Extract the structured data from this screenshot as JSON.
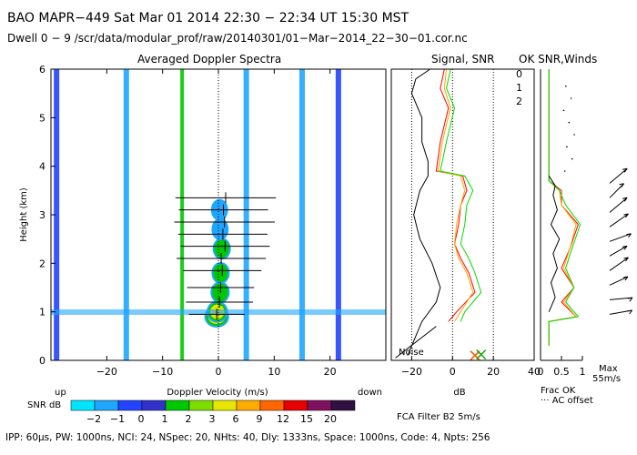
{
  "header": {
    "line1": "BAO   MAPR−449   Sat Mar 01 2014 22:30  − 22:34 UT 15:30 MST",
    "line2": "Dwell   0  −  9    /scr/data/modular_prof/raw/20140301/01−Mar−2014_22−30−01.cor.nc"
  },
  "panels": {
    "spectra_title": "Averaged Doppler Spectra",
    "signal_title": "Signal, SNR",
    "ok_title": "OK SNR,Winds",
    "ylabel": "Height (km)",
    "xlabel_spectra": "Doppler Velocity (m/s)",
    "xlabel_signal": "dB",
    "up_label": "up",
    "down_label": "down",
    "noise_label": "Noise",
    "frac_ok_label": "Frac OK",
    "ac_offset_label": "··· AC offset",
    "max_label": "Max",
    "max_value": "55m/s",
    "filter_label": "FCA Filter B2   5m/s",
    "snr_label": "SNR dB",
    "dwell_legend": [
      "0",
      "1",
      "2"
    ],
    "dwell_colors": [
      "#ff0000",
      "#ffa500",
      "#00dd00"
    ]
  },
  "colorbar": {
    "labels": [
      "−2",
      "−1",
      "0",
      "1",
      "2",
      "3",
      "6",
      "9",
      "12",
      "15",
      "20"
    ],
    "colors": [
      "#00e5ff",
      "#1fa6ff",
      "#2244ff",
      "#3333cc",
      "#00c800",
      "#7fdc00",
      "#e6e600",
      "#ffaa00",
      "#ff6600",
      "#e60000",
      "#801060",
      "#301040"
    ]
  },
  "footer": "IPP: 60μs,   PW: 1000ns,   NCI:  24,   NSpec: 20,  NHts: 40,   Dly: 1333ns,   Space: 1000ns,   Code: 4,   Npts: 256",
  "chart_data": [
    {
      "type": "heatmap",
      "title": "Averaged Doppler Spectra",
      "xlabel": "Doppler Velocity (m/s)",
      "ylabel": "Height (km)",
      "xlim": [
        -30,
        30
      ],
      "ylim": [
        0,
        6
      ],
      "xticks": [
        -20,
        -10,
        0,
        10,
        20
      ],
      "yticks": [
        0,
        1,
        2,
        3,
        4,
        5,
        6
      ],
      "x_ticklabels": [
        "−20",
        "−10",
        "0",
        "10",
        "20"
      ],
      "y_ticklabels": [
        "0",
        "1",
        "2",
        "3",
        "4",
        "5",
        "6"
      ],
      "vertical_bands": [
        {
          "x": -29,
          "snr": -1
        },
        {
          "x": -16.5,
          "snr": -2
        },
        {
          "x": -6.5,
          "snr": 1
        },
        {
          "x": 5,
          "snr": -2
        },
        {
          "x": 15,
          "snr": -2
        },
        {
          "x": 21.5,
          "snr": -1
        }
      ],
      "core_echo": [
        {
          "h": 0.9,
          "v": -0.3,
          "snr": 6
        },
        {
          "h": 1.0,
          "v": -0.2,
          "snr": 3
        },
        {
          "h": 1.4,
          "v": 0.3,
          "snr": 1
        },
        {
          "h": 1.8,
          "v": 0.4,
          "snr": 0
        },
        {
          "h": 2.3,
          "v": 0.6,
          "snr": 0
        },
        {
          "h": 2.7,
          "v": 0.3,
          "snr": -1
        },
        {
          "h": 3.1,
          "v": 0.2,
          "snr": -1
        }
      ],
      "moment_markers": [
        {
          "h": 0.95,
          "v": -0.3,
          "w": 5
        },
        {
          "h": 1.2,
          "v": 0.2,
          "w": 6
        },
        {
          "h": 1.5,
          "v": 0.4,
          "w": 6
        },
        {
          "h": 1.85,
          "v": 0.7,
          "w": 7
        },
        {
          "h": 2.1,
          "v": 0.5,
          "w": 8
        },
        {
          "h": 2.35,
          "v": 1.2,
          "w": 8
        },
        {
          "h": 2.6,
          "v": 0.8,
          "w": 8
        },
        {
          "h": 2.85,
          "v": 1.1,
          "w": 9
        },
        {
          "h": 3.1,
          "v": 0.9,
          "w": 8
        },
        {
          "h": 3.35,
          "v": 1.3,
          "w": 9
        }
      ]
    },
    {
      "type": "line",
      "title": "Signal, SNR",
      "xlabel": "dB",
      "xlim": [
        -30,
        40
      ],
      "ylim": [
        0,
        6
      ],
      "xticks": [
        -20,
        0,
        20,
        40
      ],
      "x_ticklabels": [
        "−20",
        "0",
        "20",
        "40"
      ],
      "series": [
        {
          "color": "#000000",
          "x": [
            -22,
            -15,
            -8,
            -6,
            -10,
            -16,
            -19,
            -16,
            -12,
            -12,
            -15,
            -15,
            -20,
            -18,
            -11
          ],
          "y": [
            0.1,
            0.8,
            1.2,
            1.5,
            2.0,
            2.5,
            3.0,
            3.5,
            3.8,
            4.1,
            4.5,
            5.0,
            5.5,
            5.8,
            6.0
          ]
        },
        {
          "color": "#ff0000",
          "x": [
            -2,
            2,
            11,
            8,
            4,
            1,
            3,
            4,
            7,
            5,
            -8,
            -6,
            -2,
            -6,
            -4
          ],
          "y": [
            0.8,
            1.0,
            1.4,
            1.8,
            2.1,
            2.4,
            2.8,
            3.2,
            3.5,
            3.8,
            3.9,
            4.5,
            5.2,
            5.6,
            6.0
          ]
        },
        {
          "color": "#ffa500",
          "x": [
            1,
            4,
            10,
            7,
            3,
            1,
            2,
            4,
            6,
            4,
            -7,
            -5,
            -1,
            -4,
            -3
          ],
          "y": [
            0.8,
            1.0,
            1.4,
            1.8,
            2.1,
            2.4,
            2.8,
            3.2,
            3.5,
            3.8,
            3.9,
            4.5,
            5.2,
            5.6,
            6.0
          ]
        },
        {
          "color": "#00dd00",
          "x": [
            4,
            6,
            14,
            11,
            8,
            4,
            6,
            7,
            10,
            6,
            -6,
            -3,
            1,
            -3,
            -1
          ],
          "y": [
            0.8,
            1.0,
            1.4,
            1.8,
            2.1,
            2.4,
            2.8,
            3.2,
            3.5,
            3.8,
            3.9,
            4.5,
            5.2,
            5.6,
            6.0
          ]
        }
      ],
      "noise_markers": [
        {
          "x": 11,
          "y": 0.1,
          "color": "#ff5500"
        },
        {
          "x": 14,
          "y": 0.12,
          "color": "#00aa00"
        }
      ]
    },
    {
      "type": "line",
      "title": "OK SNR,Winds",
      "xlim": [
        0,
        1
      ],
      "ylim": [
        0,
        6
      ],
      "xticks": [
        0,
        0.5,
        1
      ],
      "x_ticklabels": [
        "0",
        "0.5",
        "1"
      ],
      "series": [
        {
          "color": "#ff0000",
          "x": [
            0.2,
            0.2,
            0.85,
            0.5,
            0.8,
            0.5,
            0.7,
            0.9,
            0.5,
            0.5,
            0.2,
            0.2
          ],
          "y": [
            0.3,
            0.8,
            0.9,
            1.2,
            1.5,
            1.9,
            2.3,
            2.8,
            3.2,
            3.5,
            3.7,
            6.0
          ]
        },
        {
          "color": "#ffa500",
          "x": [
            0.2,
            0.2,
            0.85,
            0.55,
            0.8,
            0.55,
            0.7,
            0.85,
            0.5,
            0.45,
            0.2,
            0.2
          ],
          "y": [
            0.3,
            0.8,
            0.9,
            1.2,
            1.5,
            1.9,
            2.3,
            2.8,
            3.2,
            3.5,
            3.7,
            6.0
          ]
        },
        {
          "color": "#00dd00",
          "x": [
            0.2,
            0.2,
            0.9,
            0.6,
            0.8,
            0.6,
            0.75,
            0.95,
            0.6,
            0.45,
            0.2,
            0.2
          ],
          "y": [
            0.3,
            0.8,
            0.9,
            1.2,
            1.5,
            1.9,
            2.3,
            2.8,
            3.2,
            3.5,
            3.7,
            6.0
          ]
        },
        {
          "color": "#000000",
          "x": [
            0.2,
            0.35,
            0.25,
            0.4,
            0.3,
            0.45,
            0.25,
            0.4,
            0.3,
            0.35,
            0.2
          ],
          "y": [
            1.0,
            1.3,
            1.6,
            1.9,
            2.2,
            2.5,
            2.8,
            3.1,
            3.4,
            3.6,
            3.8
          ]
        }
      ],
      "wind_barbs": [
        {
          "h": 0.95,
          "dir": 10,
          "len": 25
        },
        {
          "h": 1.25,
          "dir": 5,
          "len": 25
        },
        {
          "h": 1.55,
          "dir": 25,
          "len": 22
        },
        {
          "h": 1.85,
          "dir": 35,
          "len": 25
        },
        {
          "h": 2.15,
          "dir": 30,
          "len": 22
        },
        {
          "h": 2.45,
          "dir": 20,
          "len": 25
        },
        {
          "h": 2.75,
          "dir": 35,
          "len": 25
        },
        {
          "h": 3.05,
          "dir": 40,
          "len": 25
        },
        {
          "h": 3.35,
          "dir": 45,
          "len": 22
        },
        {
          "h": 3.65,
          "dir": 40,
          "len": 25
        }
      ]
    }
  ]
}
